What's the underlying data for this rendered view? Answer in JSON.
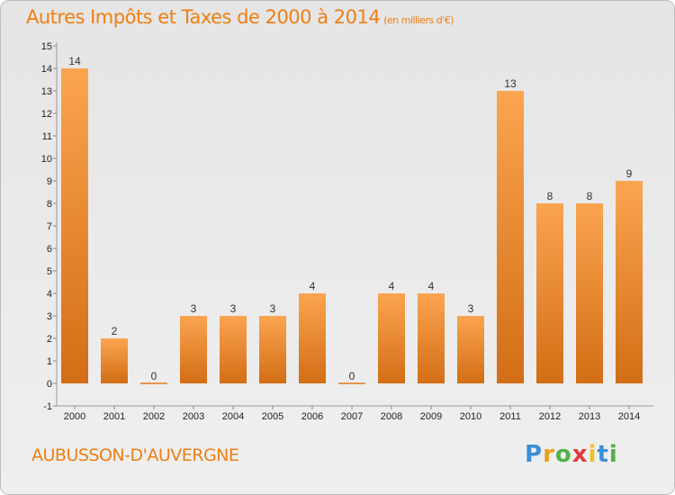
{
  "header": {
    "title": "Autres Impôts et Taxes de 2000 à 2014",
    "unit": "(en milliers d'€)"
  },
  "footer": {
    "commune": "AUBUSSON-D'AUVERGNE",
    "logo_letters": [
      "P",
      "r",
      "o",
      "x",
      "i",
      "t",
      "i"
    ],
    "logo_colors": [
      "#3d8fd6",
      "#e8a020",
      "#54b048",
      "#e33a3a",
      "#f0c020",
      "#3d8fd6",
      "#54b048"
    ]
  },
  "colors": {
    "accent": "#ee7f14",
    "bar_light": "#fba450",
    "bar_dark": "#d26e15"
  },
  "chart_data": {
    "type": "bar",
    "categories": [
      "2000",
      "2001",
      "2002",
      "2003",
      "2004",
      "2005",
      "2006",
      "2007",
      "2008",
      "2009",
      "2010",
      "2011",
      "2012",
      "2013",
      "2014"
    ],
    "values": [
      14,
      2,
      0,
      3,
      3,
      3,
      4,
      0,
      4,
      4,
      3,
      13,
      8,
      8,
      9
    ],
    "ylim": [
      -1,
      15
    ],
    "yticks": [
      -1,
      0,
      1,
      2,
      3,
      4,
      5,
      6,
      7,
      8,
      9,
      10,
      11,
      12,
      13,
      14,
      15
    ],
    "title": "Autres Impôts et Taxes de 2000 à 2014",
    "xlabel": "",
    "ylabel": "",
    "grid": false,
    "legend": "none"
  }
}
